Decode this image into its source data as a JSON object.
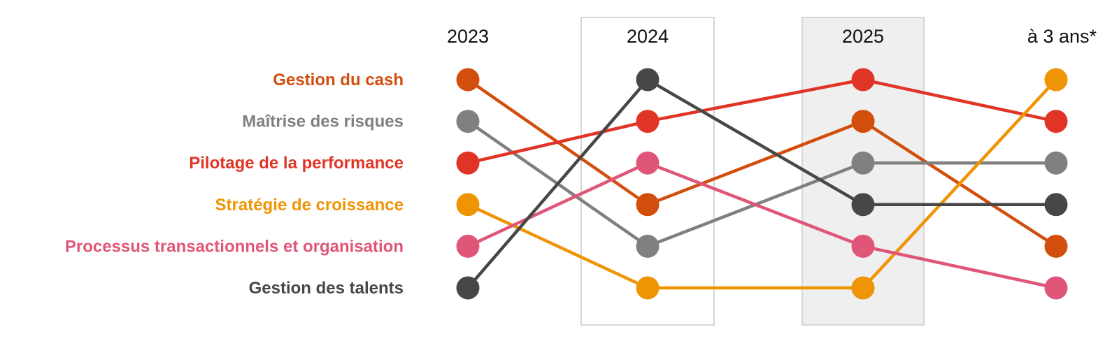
{
  "chart_data": {
    "type": "line",
    "subtype": "bump-chart",
    "x": [
      "2023",
      "2024",
      "2025",
      "à 3 ans*"
    ],
    "highlighted_columns": [
      {
        "label": "2024",
        "fill": "none"
      },
      {
        "label": "2025",
        "fill": "#efefef"
      }
    ],
    "y_direction": "rank 1 at top",
    "ylim": [
      1,
      6
    ],
    "series": [
      {
        "name": "Gestion du cash",
        "color": "#d24e0d",
        "values": [
          1,
          4,
          2,
          5
        ]
      },
      {
        "name": "Maîtrise des risques",
        "color": "#808080",
        "values": [
          2,
          5,
          3,
          3
        ]
      },
      {
        "name": "Pilotage de la performance",
        "color": "#e03526",
        "values": [
          3,
          2,
          1,
          2
        ]
      },
      {
        "name": "Stratégie de croissance",
        "color": "#ef9404",
        "values": [
          4,
          6,
          6,
          1
        ]
      },
      {
        "name": "Processus transactionnels et organisation",
        "color": "#e05678",
        "values": [
          5,
          3,
          5,
          6
        ]
      },
      {
        "name": "Gestion des talents",
        "color": "#474747",
        "values": [
          6,
          1,
          4,
          4
        ]
      }
    ],
    "legend": "row labels at left"
  }
}
